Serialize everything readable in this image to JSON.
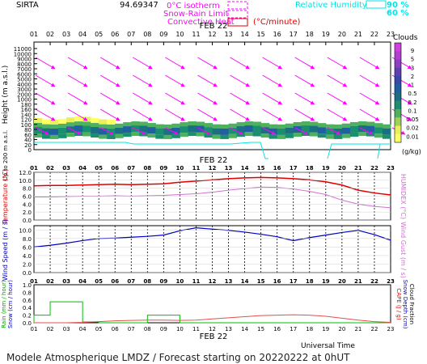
{
  "header": {
    "site": "SIRTA",
    "coord_text": "94.69347",
    "legend": {
      "isotherm": "0°C isotherm",
      "snow_rain": "Snow-Rain Limit",
      "convective": "Convective Heat",
      "convective_unit": "(°C/minute)",
      "rh_label": "Relative Humidity",
      "rh_90": "90 %",
      "rh_60": "60 %"
    }
  },
  "hours": [
    "01",
    "02",
    "03",
    "04",
    "05",
    "06",
    "07",
    "08",
    "09",
    "10",
    "11",
    "12",
    "13",
    "14",
    "15",
    "16",
    "17",
    "18",
    "19",
    "20",
    "21",
    "22",
    "23"
  ],
  "date_label": "FEB 22",
  "footer": {
    "title": "Modele Atmospherique LMDZ / Forecast starting on 20220222 at 0hUT",
    "time_label": "Universal Time"
  },
  "colors": {
    "magenta": "#ff00ff",
    "cyan": "#00e5e5",
    "temperature": "#e00000",
    "humidex": "#d070d0",
    "wind": "#0000c0",
    "rain": "#00c000",
    "cape": "#e05050",
    "cloud_scale": [
      "#ffff66",
      "#e8f060",
      "#9ed05a",
      "#4fb060",
      "#1a8f70",
      "#1a7080",
      "#2060a0",
      "#3a48a8",
      "#6040b0",
      "#8a40c0",
      "#b040d0",
      "#d040e0"
    ]
  },
  "chart_data": [
    {
      "type": "heatmap",
      "name": "clouds",
      "ylabel": "Height (m a.s.l.)",
      "ylabel2": "Up to 200 m a.s.l.",
      "yticks": [
        "11000",
        "10000",
        "9000",
        "8000",
        "7000",
        "6000",
        "5000",
        "4000",
        "3000",
        "2000",
        "1000",
        "180",
        "160",
        "140",
        "120",
        "100",
        "80",
        "60",
        "40",
        "20",
        "0"
      ],
      "colorbar_title": "Clouds",
      "colorbar_unit": "(g/kg)",
      "colorbar_ticks": [
        "9",
        "5",
        "3",
        "2",
        "1",
        "0.5",
        "0.2",
        "0.1",
        "0.05",
        "0.02",
        "0.01"
      ],
      "cloud_layer": {
        "base_m": 1000,
        "top_m": 1900
      }
    },
    {
      "type": "line",
      "name": "temperature",
      "ylabel": "Temperature (°C)",
      "ylabel_right": "HUMIDEX (°C)",
      "yticks": [
        "12.0",
        "10.0",
        "8.0",
        "6.0",
        "4.0",
        "2.0",
        "0.0"
      ],
      "ylim": [
        0,
        12
      ],
      "series": [
        {
          "name": "Temperature",
          "values": [
            8.6,
            8.7,
            8.7,
            8.8,
            8.9,
            9.0,
            8.9,
            9.0,
            9.1,
            9.5,
            9.8,
            10.1,
            10.4,
            10.6,
            10.7,
            10.6,
            10.4,
            10.1,
            9.6,
            8.8,
            7.5,
            6.8,
            6.3
          ]
        },
        {
          "name": "HUMIDEX",
          "values": [
            5.8,
            5.8,
            5.9,
            6.0,
            6.0,
            6.1,
            6.0,
            6.1,
            6.2,
            6.4,
            6.6,
            7.0,
            7.5,
            7.9,
            8.3,
            8.2,
            7.8,
            7.2,
            6.4,
            5.0,
            4.0,
            3.4,
            3.1
          ]
        }
      ]
    },
    {
      "type": "line",
      "name": "wind",
      "ylabel": "Wind Speed (m / s)",
      "ylabel_right": "Wind Gust (m / s)",
      "yticks": [
        "10.0",
        "8.0",
        "6.0",
        "4.0",
        "2.0",
        "0.0"
      ],
      "ylim": [
        0,
        11
      ],
      "x_hours": [
        1,
        2,
        3,
        4,
        5,
        6,
        7,
        8,
        9,
        10,
        11,
        12,
        13,
        14,
        15,
        16,
        17,
        18,
        19,
        20,
        21,
        22,
        23
      ],
      "values": [
        6.0,
        6.4,
        6.9,
        7.5,
        8.0,
        8.1,
        8.3,
        8.5,
        8.8,
        9.8,
        10.5,
        10.2,
        9.9,
        9.5,
        9.0,
        8.4,
        7.5,
        8.2,
        8.8,
        9.4,
        9.9,
        8.9,
        7.6
      ]
    },
    {
      "type": "bar",
      "name": "precipitation",
      "ylabel": "Rain (mm / hour)",
      "ylabel2": "Snow (cm / hour)",
      "ylabel_right": "CAPE (J / g)",
      "ylabel_right2": "Snow Depth (cm)",
      "ylabel_right3": "Cloud Fraction",
      "yticks": [
        "1.0",
        "0.8",
        "0.6",
        "0.4",
        "0.2",
        "0.0"
      ],
      "ylim": [
        0,
        1
      ],
      "rain_steps": [
        0.2,
        0.55,
        0.55,
        0.02,
        0.0,
        0.0,
        0.0,
        0.2,
        0.2,
        0.0,
        0.0,
        0.0,
        0.0,
        0.0,
        0.0,
        0.0,
        0.0,
        0.0,
        0.0,
        0.0,
        0.0,
        0.0
      ],
      "cape": [
        0.0,
        0.0,
        0.0,
        0.01,
        0.03,
        0.05,
        0.06,
        0.07,
        0.07,
        0.06,
        0.07,
        0.1,
        0.13,
        0.16,
        0.19,
        0.2,
        0.21,
        0.2,
        0.17,
        0.12,
        0.07,
        0.03,
        0.01
      ]
    }
  ]
}
